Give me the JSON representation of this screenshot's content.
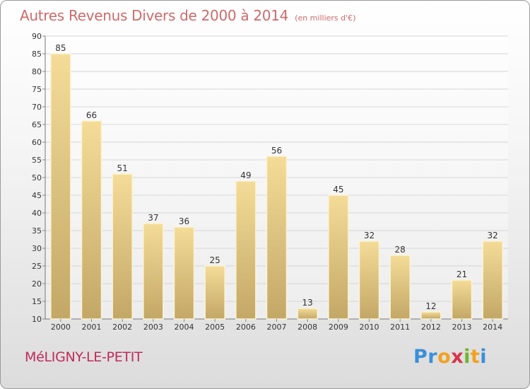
{
  "header": {
    "title": "Autres Revenus Divers de 2000 à 2014",
    "unit": "(en milliers d'€)"
  },
  "footer": {
    "place": "MéLIGNY-LE-PETIT",
    "brand_letters": [
      {
        "ch": "P",
        "color": "#3a8fd8"
      },
      {
        "ch": "r",
        "color": "#3a8fd8"
      },
      {
        "ch": "o",
        "color": "#f2a11f"
      },
      {
        "ch": "x",
        "color": "#d8344c"
      },
      {
        "ch": "i",
        "color": "#6fb52c"
      },
      {
        "ch": "t",
        "color": "#f2a11f"
      },
      {
        "ch": "i",
        "color": "#3a8fd8"
      }
    ]
  },
  "colors": {
    "bar_top": "#f4dc98",
    "bar_bottom": "#c3a766",
    "bar_edge": "#fbf3d6",
    "grid": "#d6d6d6",
    "axis_text": "#333333",
    "title": "#d06a6a",
    "place": "#c02a5a"
  },
  "chart_data": {
    "type": "bar",
    "title": "Autres Revenus Divers de 2000 à 2014",
    "subtitle": "(en milliers d'€)",
    "xlabel": "",
    "ylabel": "",
    "categories": [
      "2000",
      "2001",
      "2002",
      "2003",
      "2004",
      "2005",
      "2006",
      "2007",
      "2008",
      "2009",
      "2010",
      "2011",
      "2012",
      "2013",
      "2014"
    ],
    "values": [
      85,
      66,
      51,
      37,
      36,
      25,
      49,
      56,
      13,
      45,
      32,
      28,
      12,
      21,
      32
    ],
    "ylim": [
      10,
      90
    ],
    "yticks": [
      10,
      15,
      20,
      25,
      30,
      35,
      40,
      45,
      50,
      55,
      60,
      65,
      70,
      75,
      80,
      85,
      90
    ],
    "grid": true,
    "data_labels": true
  }
}
